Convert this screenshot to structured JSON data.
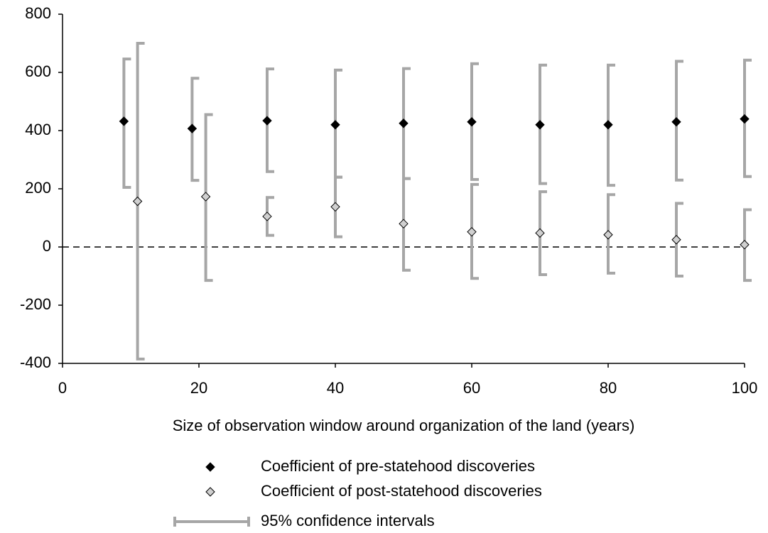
{
  "chart_data": {
    "type": "errorbar-scatter",
    "x_label": "Size of observation window around organization of the land (years)",
    "xlim": [
      0,
      100
    ],
    "xticks": [
      0,
      20,
      40,
      60,
      80,
      100
    ],
    "ylim": [
      -400,
      800
    ],
    "yticks": [
      -400,
      -200,
      0,
      200,
      400,
      600,
      800
    ],
    "grid": false,
    "zero_line": true,
    "ci_label": "95% confidence intervals",
    "ci_color": "#a6a6a6",
    "series": [
      {
        "name": "Coefficient of pre-statehood discoveries",
        "color": "#000000",
        "x": [
          9,
          19,
          30,
          40,
          50,
          60,
          70,
          80,
          90,
          100
        ],
        "values": [
          432,
          407,
          434,
          420,
          425,
          430,
          420,
          420,
          430,
          440
        ],
        "upper": [
          646,
          580,
          612,
          608,
          613,
          630,
          625,
          625,
          638,
          642
        ],
        "lower": [
          205,
          229,
          259,
          240,
          235,
          232,
          218,
          212,
          230,
          242
        ]
      },
      {
        "name": "Coefficient of post-statehood discoveries",
        "color": "#d0d0d0",
        "x": [
          11,
          21,
          30,
          40,
          50,
          60,
          70,
          80,
          90,
          100
        ],
        "values": [
          157,
          173,
          105,
          138,
          80,
          52,
          48,
          42,
          25,
          8
        ],
        "upper": [
          700,
          455,
          170,
          240,
          235,
          215,
          190,
          180,
          150,
          128
        ],
        "lower": [
          -385,
          -115,
          40,
          35,
          -80,
          -108,
          -95,
          -90,
          -100,
          -115
        ]
      }
    ]
  }
}
